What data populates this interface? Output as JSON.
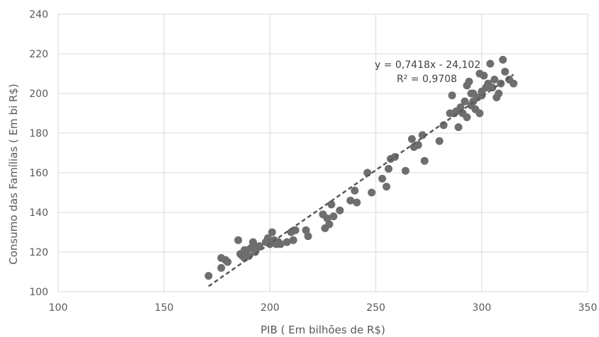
{
  "chart_data": {
    "type": "scatter",
    "title": "",
    "xlabel": "PIB ( Em bilhões de R$)",
    "ylabel": "Consumo das Famílias ( Em bi R$)",
    "xlim": [
      100,
      350
    ],
    "ylim": [
      100,
      240
    ],
    "xticks": [
      100,
      150,
      200,
      250,
      300,
      350
    ],
    "yticks": [
      100,
      120,
      140,
      160,
      180,
      200,
      220,
      240
    ],
    "grid": true,
    "legend": "none",
    "marker_color": "#6e6e6e",
    "trendline": {
      "type": "linear",
      "slope": 0.7418,
      "intercept": -24.102,
      "x_range": [
        171,
        315
      ],
      "style": "dashed",
      "color": "#595959"
    },
    "annotations": {
      "equation": "y = 0,7418x - 24,102",
      "r_squared": "R² = 0,9708"
    },
    "points": [
      [
        171,
        108
      ],
      [
        177,
        112
      ],
      [
        177,
        117
      ],
      [
        179,
        116
      ],
      [
        180,
        115
      ],
      [
        185,
        126
      ],
      [
        186,
        119
      ],
      [
        187,
        118
      ],
      [
        188,
        117
      ],
      [
        188,
        121
      ],
      [
        189,
        121
      ],
      [
        190,
        118
      ],
      [
        191,
        122
      ],
      [
        192,
        125
      ],
      [
        193,
        123
      ],
      [
        193,
        120
      ],
      [
        194,
        122
      ],
      [
        195,
        123
      ],
      [
        198,
        125
      ],
      [
        199,
        127
      ],
      [
        200,
        124
      ],
      [
        201,
        130
      ],
      [
        202,
        126
      ],
      [
        203,
        124
      ],
      [
        204,
        125
      ],
      [
        205,
        124
      ],
      [
        208,
        125
      ],
      [
        210,
        130
      ],
      [
        211,
        126
      ],
      [
        212,
        131
      ],
      [
        217,
        131
      ],
      [
        218,
        128
      ],
      [
        225,
        139
      ],
      [
        226,
        132
      ],
      [
        227,
        137
      ],
      [
        228,
        134
      ],
      [
        229,
        144
      ],
      [
        230,
        138
      ],
      [
        233,
        141
      ],
      [
        238,
        146
      ],
      [
        240,
        151
      ],
      [
        241,
        145
      ],
      [
        246,
        160
      ],
      [
        248,
        150
      ],
      [
        253,
        157
      ],
      [
        255,
        153
      ],
      [
        256,
        162
      ],
      [
        257,
        167
      ],
      [
        259,
        168
      ],
      [
        264,
        161
      ],
      [
        267,
        177
      ],
      [
        268,
        173
      ],
      [
        270,
        174
      ],
      [
        272,
        179
      ],
      [
        273,
        166
      ],
      [
        280,
        176
      ],
      [
        282,
        184
      ],
      [
        285,
        190
      ],
      [
        286,
        199
      ],
      [
        287,
        190
      ],
      [
        288,
        191
      ],
      [
        289,
        183
      ],
      [
        290,
        193
      ],
      [
        291,
        190
      ],
      [
        292,
        196
      ],
      [
        293,
        188
      ],
      [
        293,
        204
      ],
      [
        294,
        206
      ],
      [
        295,
        200
      ],
      [
        295,
        194
      ],
      [
        296,
        196
      ],
      [
        296,
        200
      ],
      [
        297,
        192
      ],
      [
        298,
        198
      ],
      [
        299,
        190
      ],
      [
        299,
        210
      ],
      [
        300,
        199
      ],
      [
        300,
        201
      ],
      [
        301,
        209
      ],
      [
        302,
        203
      ],
      [
        303,
        205
      ],
      [
        304,
        215
      ],
      [
        305,
        203
      ],
      [
        306,
        207
      ],
      [
        307,
        198
      ],
      [
        308,
        200
      ],
      [
        309,
        205
      ],
      [
        310,
        217
      ],
      [
        311,
        211
      ],
      [
        313,
        207
      ],
      [
        315,
        205
      ]
    ]
  }
}
